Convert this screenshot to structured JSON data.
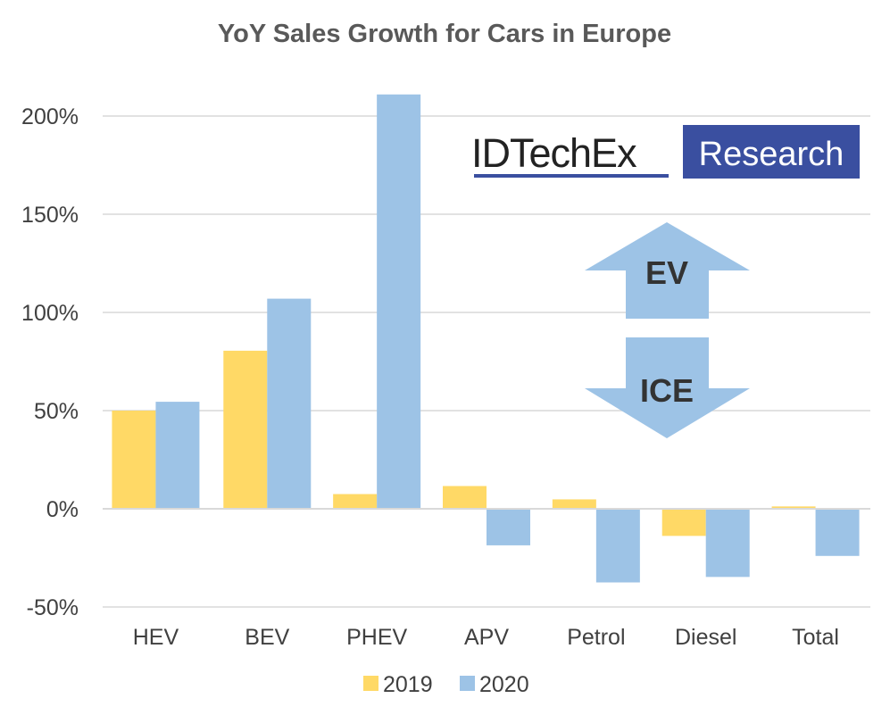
{
  "chart_data": {
    "type": "bar",
    "title": "YoY Sales Growth for Cars in Europe",
    "xlabel": "",
    "ylabel": "",
    "categories": [
      "HEV",
      "BEV",
      "PHEV",
      "APV",
      "Petrol",
      "Diesel",
      "Total"
    ],
    "series": [
      {
        "name": "2019",
        "color": "#FFD966",
        "values": [
          50,
          80.5,
          7.5,
          11.6,
          4.8,
          -13.8,
          1.2
        ]
      },
      {
        "name": "2020",
        "color": "#9DC3E6",
        "values": [
          54.5,
          107,
          211,
          -18.6,
          -37.5,
          -34.7,
          -24
        ]
      }
    ],
    "ylim": [
      -50,
      200
    ],
    "yticks": [
      -50,
      0,
      50,
      100,
      150,
      200
    ],
    "ytick_labels": [
      "-50%",
      "0%",
      "50%",
      "100%",
      "150%",
      "200%"
    ],
    "grid": true,
    "legend_position": "bottom",
    "annotations": {
      "logo_left": "IDTechEx",
      "logo_right": "Research",
      "arrow_up": "EV",
      "arrow_down": "ICE"
    },
    "colors": {
      "logo_blue": "#3A4FA0",
      "arrow": "#9DC3E6",
      "grid": "#D9D9D9"
    }
  }
}
